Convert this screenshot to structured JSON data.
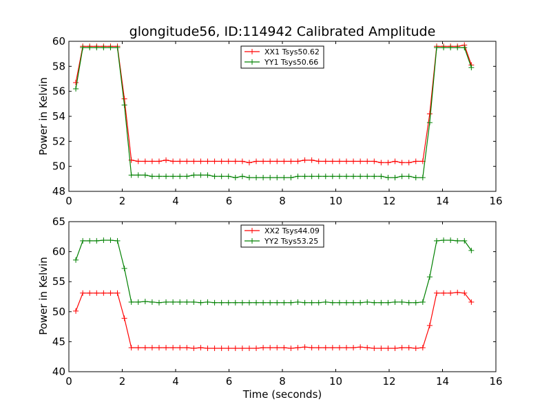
{
  "chart_data": [
    {
      "type": "line",
      "title": "glongitude56, ID:114942 Calibrated Amplitude",
      "xlabel": "",
      "ylabel": "Power in Kelvin",
      "xlim": [
        0,
        16
      ],
      "ylim": [
        48,
        60
      ],
      "xticks": [
        0,
        2,
        4,
        6,
        8,
        10,
        12,
        14,
        16
      ],
      "yticks": [
        48,
        50,
        52,
        54,
        56,
        58,
        60
      ],
      "legend_position": "top-center",
      "grid": false,
      "x": [
        0.26,
        0.52,
        0.78,
        1.04,
        1.3,
        1.56,
        1.82,
        2.08,
        2.34,
        2.6,
        2.86,
        3.12,
        3.38,
        3.64,
        3.9,
        4.16,
        4.42,
        4.68,
        4.94,
        5.2,
        5.46,
        5.72,
        5.98,
        6.24,
        6.5,
        6.76,
        7.02,
        7.28,
        7.54,
        7.8,
        8.06,
        8.32,
        8.58,
        8.84,
        9.1,
        9.36,
        9.62,
        9.88,
        10.14,
        10.4,
        10.66,
        10.92,
        11.18,
        11.44,
        11.7,
        11.96,
        12.22,
        12.48,
        12.74,
        13.0,
        13.26,
        13.52,
        13.78,
        14.04,
        14.3,
        14.56,
        14.82,
        15.08
      ],
      "series": [
        {
          "name": "XX1 Tsys50.62",
          "color": "#ff0000",
          "values": [
            56.7,
            59.6,
            59.6,
            59.6,
            59.6,
            59.6,
            59.6,
            55.4,
            50.5,
            50.4,
            50.4,
            50.4,
            50.4,
            50.5,
            50.4,
            50.4,
            50.4,
            50.4,
            50.4,
            50.4,
            50.4,
            50.4,
            50.4,
            50.4,
            50.4,
            50.3,
            50.4,
            50.4,
            50.4,
            50.4,
            50.4,
            50.4,
            50.4,
            50.5,
            50.5,
            50.4,
            50.4,
            50.4,
            50.4,
            50.4,
            50.4,
            50.4,
            50.4,
            50.4,
            50.3,
            50.3,
            50.4,
            50.3,
            50.3,
            50.4,
            50.4,
            54.2,
            59.6,
            59.6,
            59.6,
            59.6,
            59.7,
            58.1
          ]
        },
        {
          "name": "YY1 Tsys50.66",
          "color": "#008000",
          "values": [
            56.2,
            59.5,
            59.5,
            59.5,
            59.5,
            59.5,
            59.5,
            54.9,
            49.3,
            49.3,
            49.3,
            49.2,
            49.2,
            49.2,
            49.2,
            49.2,
            49.2,
            49.3,
            49.3,
            49.3,
            49.2,
            49.2,
            49.2,
            49.1,
            49.2,
            49.1,
            49.1,
            49.1,
            49.1,
            49.1,
            49.1,
            49.1,
            49.2,
            49.2,
            49.2,
            49.2,
            49.2,
            49.2,
            49.2,
            49.2,
            49.2,
            49.2,
            49.2,
            49.2,
            49.2,
            49.1,
            49.1,
            49.2,
            49.2,
            49.1,
            49.1,
            53.5,
            59.5,
            59.5,
            59.5,
            59.5,
            59.5,
            57.9
          ]
        }
      ]
    },
    {
      "type": "line",
      "title": "",
      "xlabel": "Time (seconds)",
      "ylabel": "Power in Kelvin",
      "xlim": [
        0,
        16
      ],
      "ylim": [
        40,
        65
      ],
      "xticks": [
        0,
        2,
        4,
        6,
        8,
        10,
        12,
        14,
        16
      ],
      "yticks": [
        40,
        45,
        50,
        55,
        60,
        65
      ],
      "legend_position": "top-center",
      "grid": false,
      "x": [
        0.26,
        0.52,
        0.78,
        1.04,
        1.3,
        1.56,
        1.82,
        2.08,
        2.34,
        2.6,
        2.86,
        3.12,
        3.38,
        3.64,
        3.9,
        4.16,
        4.42,
        4.68,
        4.94,
        5.2,
        5.46,
        5.72,
        5.98,
        6.24,
        6.5,
        6.76,
        7.02,
        7.28,
        7.54,
        7.8,
        8.06,
        8.32,
        8.58,
        8.84,
        9.1,
        9.36,
        9.62,
        9.88,
        10.14,
        10.4,
        10.66,
        10.92,
        11.18,
        11.44,
        11.7,
        11.96,
        12.22,
        12.48,
        12.74,
        13.0,
        13.26,
        13.52,
        13.78,
        14.04,
        14.3,
        14.56,
        14.82,
        15.08
      ],
      "series": [
        {
          "name": "XX2 Tsys44.09",
          "color": "#ff0000",
          "values": [
            50.1,
            53.1,
            53.1,
            53.1,
            53.1,
            53.1,
            53.1,
            48.9,
            44.0,
            44.0,
            44.0,
            44.0,
            44.0,
            44.0,
            44.0,
            44.0,
            44.0,
            43.9,
            44.0,
            43.9,
            43.9,
            43.9,
            43.9,
            43.9,
            43.9,
            43.9,
            43.9,
            44.0,
            44.0,
            44.0,
            44.0,
            43.9,
            44.0,
            44.1,
            44.0,
            44.0,
            44.0,
            44.0,
            44.0,
            44.0,
            44.0,
            44.1,
            44.0,
            43.9,
            43.9,
            43.9,
            43.9,
            44.0,
            44.0,
            43.9,
            44.0,
            47.7,
            53.1,
            53.1,
            53.1,
            53.2,
            53.1,
            51.6
          ]
        },
        {
          "name": "YY2 Tsys53.25",
          "color": "#008000",
          "values": [
            58.6,
            61.8,
            61.8,
            61.8,
            61.9,
            61.9,
            61.8,
            57.2,
            51.6,
            51.6,
            51.7,
            51.6,
            51.5,
            51.6,
            51.6,
            51.6,
            51.6,
            51.6,
            51.5,
            51.6,
            51.5,
            51.5,
            51.5,
            51.5,
            51.5,
            51.5,
            51.5,
            51.5,
            51.5,
            51.5,
            51.5,
            51.5,
            51.6,
            51.5,
            51.5,
            51.5,
            51.6,
            51.5,
            51.5,
            51.5,
            51.5,
            51.5,
            51.6,
            51.5,
            51.5,
            51.5,
            51.6,
            51.6,
            51.5,
            51.5,
            51.6,
            55.8,
            61.8,
            61.9,
            61.9,
            61.8,
            61.8,
            60.2
          ]
        }
      ]
    }
  ]
}
